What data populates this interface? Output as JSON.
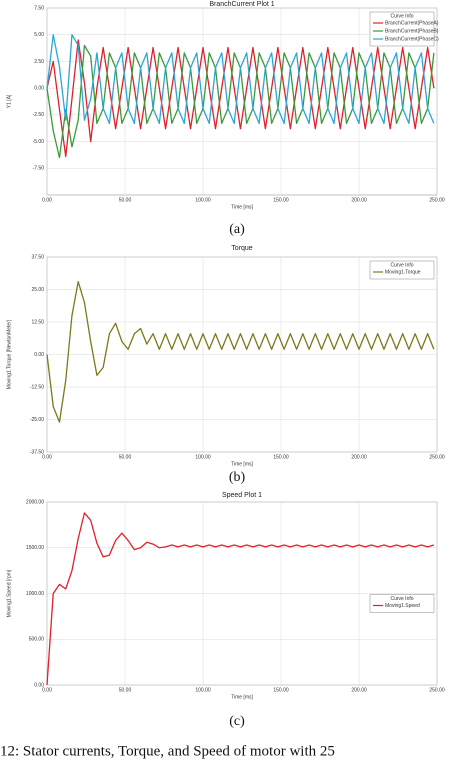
{
  "chart_data": [
    {
      "type": "line",
      "title": "BranchCurrent Plot 1",
      "label": "(a)",
      "x_label": "Time [ms]",
      "y_label": "Y1 [A]",
      "legend_title": "Curve Info",
      "legend": "upper right",
      "grid": true,
      "x": [
        0,
        4,
        8,
        12,
        16,
        20,
        24,
        28,
        32,
        36,
        40,
        44,
        48,
        52,
        56,
        60,
        64,
        68,
        72,
        76,
        80,
        84,
        88,
        92,
        96,
        100,
        104,
        108,
        112,
        116,
        120,
        124,
        128,
        132,
        136,
        140,
        144,
        148,
        152,
        156,
        160,
        164,
        168,
        172,
        176,
        180,
        184,
        188,
        192,
        196,
        200,
        204,
        208,
        212,
        216,
        220,
        224,
        228,
        232,
        236,
        240,
        244,
        248
      ],
      "xlim": [
        0,
        250
      ],
      "xticks": [
        {
          "value": 0,
          "label": "0.00"
        },
        {
          "value": 50,
          "label": "50.00"
        },
        {
          "value": 100,
          "label": "100.00"
        },
        {
          "value": 150,
          "label": "150.00"
        },
        {
          "value": 200,
          "label": "200.00"
        },
        {
          "value": 250,
          "label": "250.00"
        }
      ],
      "ylim": [
        -10,
        7.5
      ],
      "yticks": [
        {
          "value": 7.5,
          "label": "7.50"
        },
        {
          "value": 5,
          "label": "5.00"
        },
        {
          "value": 2.5,
          "label": "2.50"
        },
        {
          "value": 0,
          "label": "0.00"
        },
        {
          "value": -2.5,
          "label": "-2.50"
        },
        {
          "value": -5,
          "label": "-5.00"
        },
        {
          "value": -7.5,
          "label": "-7.50"
        }
      ],
      "series": [
        {
          "name": "BranchCurrent(PhaseA)",
          "color": "#e0202a",
          "values": [
            0,
            2.5,
            -2,
            -6.4,
            -1,
            4.5,
            0.5,
            -5,
            0,
            3.8,
            0,
            -3.8,
            0,
            3.8,
            0,
            -3.8,
            0,
            3.8,
            0,
            -3.8,
            0,
            3.8,
            0,
            -3.8,
            0,
            3.8,
            0,
            -3.8,
            0,
            3.8,
            0,
            -3.8,
            0,
            3.8,
            0,
            -3.8,
            0,
            3.8,
            0,
            -3.8,
            0,
            3.8,
            0,
            -3.8,
            0,
            3.8,
            0,
            -3.8,
            0,
            3.8,
            0,
            -3.8,
            0,
            3.8,
            0,
            -3.8,
            0,
            3.8,
            0,
            -3.8,
            0,
            3.8,
            0
          ]
        },
        {
          "name": "BranchCurrent(PhaseB)",
          "color": "#3a9a3a",
          "values": [
            0,
            -4,
            -6.5,
            -2,
            -5.5,
            -3,
            4,
            3,
            -3.3,
            -1.9,
            3.3,
            1.9,
            -3.3,
            -1.9,
            3.3,
            1.9,
            -3.3,
            -1.9,
            3.3,
            1.9,
            -3.3,
            -1.9,
            3.3,
            1.9,
            -3.3,
            -1.9,
            3.3,
            1.9,
            -3.3,
            -1.9,
            3.3,
            1.9,
            -3.3,
            -1.9,
            3.3,
            1.9,
            -3.3,
            -1.9,
            3.3,
            1.9,
            -3.3,
            -1.9,
            3.3,
            1.9,
            -3.3,
            -1.9,
            3.3,
            1.9,
            -3.3,
            -1.9,
            3.3,
            1.9,
            -3.3,
            -1.9,
            3.3,
            1.9,
            -3.3,
            -1.9,
            3.3,
            1.9,
            -3.3,
            -1.9,
            3.3
          ]
        },
        {
          "name": "BranchCurrent(PhaseC)",
          "color": "#2aa6d8",
          "values": [
            0,
            5,
            2,
            -3,
            5,
            4,
            -3,
            -1,
            3.3,
            -1.9,
            -3.3,
            1.9,
            3.3,
            -1.9,
            -3.3,
            1.9,
            3.3,
            -1.9,
            -3.3,
            1.9,
            3.3,
            -1.9,
            -3.3,
            1.9,
            3.3,
            -1.9,
            -3.3,
            1.9,
            3.3,
            -1.9,
            -3.3,
            1.9,
            3.3,
            -1.9,
            -3.3,
            1.9,
            3.3,
            -1.9,
            -3.3,
            1.9,
            3.3,
            -1.9,
            -3.3,
            1.9,
            3.3,
            -1.9,
            -3.3,
            1.9,
            3.3,
            -1.9,
            -3.3,
            1.9,
            3.3,
            -1.9,
            -3.3,
            1.9,
            3.3,
            -1.9,
            -3.3,
            1.9,
            3.3,
            -1.9,
            -3.3
          ]
        }
      ]
    },
    {
      "type": "line",
      "title": "Torque",
      "label": "(b)",
      "x_label": "Time [ms]",
      "y_label": "Moving1.Torque [NewtonMeter]",
      "legend_title": "Curve Info",
      "legend": "upper right",
      "grid": true,
      "x": [
        0,
        4,
        8,
        12,
        16,
        20,
        24,
        28,
        32,
        36,
        40,
        44,
        48,
        52,
        56,
        60,
        64,
        68,
        72,
        76,
        80,
        84,
        88,
        92,
        96,
        100,
        104,
        108,
        112,
        116,
        120,
        124,
        128,
        132,
        136,
        140,
        144,
        148,
        152,
        156,
        160,
        164,
        168,
        172,
        176,
        180,
        184,
        188,
        192,
        196,
        200,
        204,
        208,
        212,
        216,
        220,
        224,
        228,
        232,
        236,
        240,
        244,
        248
      ],
      "xlim": [
        0,
        250
      ],
      "xticks": [
        {
          "value": 0,
          "label": "0.00"
        },
        {
          "value": 50,
          "label": "50.00"
        },
        {
          "value": 100,
          "label": "100.00"
        },
        {
          "value": 150,
          "label": "150.00"
        },
        {
          "value": 200,
          "label": "200.00"
        },
        {
          "value": 250,
          "label": "250.00"
        }
      ],
      "ylim": [
        -37.5,
        37.5
      ],
      "yticks": [
        {
          "value": 37.5,
          "label": "37.50"
        },
        {
          "value": 25,
          "label": "25.00"
        },
        {
          "value": 12.5,
          "label": "12.50"
        },
        {
          "value": 0,
          "label": "0.00"
        },
        {
          "value": -12.5,
          "label": "-12.50"
        },
        {
          "value": -25,
          "label": "-25.00"
        },
        {
          "value": -37.5,
          "label": "-37.50"
        }
      ],
      "series": [
        {
          "name": "Moving1.Torque",
          "color": "#7a7a1a",
          "values": [
            0,
            -20,
            -26,
            -10,
            15,
            28,
            20,
            5,
            -8,
            -5,
            8,
            12,
            5,
            2,
            8,
            10,
            4,
            8,
            2,
            8,
            2,
            8,
            2,
            8,
            2,
            8,
            2,
            8,
            2,
            8,
            2,
            8,
            2,
            8,
            2,
            8,
            2,
            8,
            2,
            8,
            2,
            8,
            2,
            8,
            2,
            8,
            2,
            8,
            2,
            8,
            2,
            8,
            2,
            8,
            2,
            8,
            2,
            8,
            2,
            8,
            2,
            8,
            2
          ]
        }
      ]
    },
    {
      "type": "line",
      "title": "Speed Plot 1",
      "label": "(c)",
      "x_label": "Time [ms]",
      "y_label": "Moving1.Speed [rpm]",
      "legend_title": "Curve Info",
      "legend": "right",
      "grid": true,
      "x": [
        0,
        4,
        8,
        12,
        16,
        20,
        24,
        28,
        32,
        36,
        40,
        44,
        48,
        52,
        56,
        60,
        64,
        68,
        72,
        76,
        80,
        84,
        88,
        92,
        96,
        100,
        104,
        108,
        112,
        116,
        120,
        124,
        128,
        132,
        136,
        140,
        144,
        148,
        152,
        156,
        160,
        164,
        168,
        172,
        176,
        180,
        184,
        188,
        192,
        196,
        200,
        204,
        208,
        212,
        216,
        220,
        224,
        228,
        232,
        236,
        240,
        244,
        248
      ],
      "xlim": [
        0,
        250
      ],
      "xticks": [
        {
          "value": 0,
          "label": "0.00"
        },
        {
          "value": 50,
          "label": "50.00"
        },
        {
          "value": 100,
          "label": "100.00"
        },
        {
          "value": 150,
          "label": "150.00"
        },
        {
          "value": 200,
          "label": "200.00"
        },
        {
          "value": 250,
          "label": "250.00"
        }
      ],
      "ylim": [
        0,
        2000
      ],
      "yticks": [
        {
          "value": 2000,
          "label": "2000.00"
        },
        {
          "value": 1500,
          "label": "1500.00"
        },
        {
          "value": 1000,
          "label": "1000.00"
        },
        {
          "value": 500,
          "label": "500.00"
        },
        {
          "value": 0,
          "label": "0.00"
        }
      ],
      "series": [
        {
          "name": "Moving1.Speed",
          "color": "#e0202a",
          "values": [
            0,
            1000,
            1100,
            1050,
            1250,
            1600,
            1880,
            1800,
            1550,
            1400,
            1420,
            1580,
            1660,
            1580,
            1480,
            1500,
            1560,
            1540,
            1500,
            1510,
            1530,
            1510,
            1530,
            1510,
            1530,
            1510,
            1530,
            1510,
            1530,
            1510,
            1530,
            1510,
            1530,
            1510,
            1530,
            1510,
            1530,
            1510,
            1530,
            1510,
            1530,
            1510,
            1530,
            1510,
            1530,
            1510,
            1530,
            1510,
            1530,
            1510,
            1530,
            1510,
            1530,
            1510,
            1530,
            1510,
            1530,
            1510,
            1530,
            1510,
            1530,
            1510,
            1530
          ]
        }
      ]
    }
  ],
  "caption": "12: Stator currents, Torque, and Speed of motor with 25"
}
